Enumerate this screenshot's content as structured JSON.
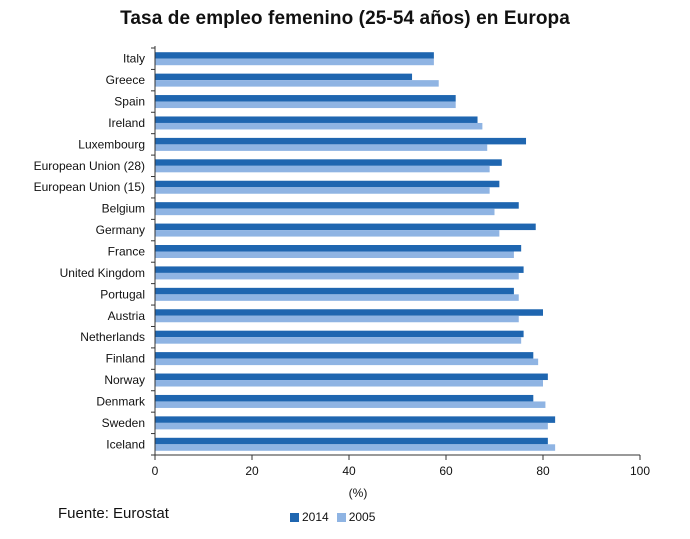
{
  "title": "Tasa de empleo femenino (25-54 años) en Europa",
  "source": "Fuente: Eurostat",
  "colors": {
    "series_2014": "#1f66b0",
    "series_2005": "#8fb4e3",
    "axis": "#333333",
    "gridline": "#ffffff"
  },
  "chart_data": {
    "type": "bar",
    "orientation": "horizontal",
    "title": "Tasa de empleo femenino (25-54 años) en Europa",
    "xlabel": "(%)",
    "ylabel": "",
    "xlim": [
      0,
      100
    ],
    "xticks": [
      0,
      20,
      40,
      60,
      80,
      100
    ],
    "grid": false,
    "legend_position": "bottom",
    "categories": [
      "Italy",
      "Greece",
      "Spain",
      "Ireland",
      "Luxembourg",
      "European Union (28)",
      "European Union (15)",
      "Belgium",
      "Germany",
      "France",
      "United Kingdom",
      "Portugal",
      "Austria",
      "Netherlands",
      "Finland",
      "Norway",
      "Denmark",
      "Sweden",
      "Iceland"
    ],
    "series": [
      {
        "name": "2014",
        "color": "#1f66b0",
        "values": [
          57.5,
          53.0,
          62.0,
          66.5,
          76.5,
          71.5,
          71.0,
          75.0,
          78.5,
          75.5,
          76.0,
          74.0,
          80.0,
          76.0,
          78.0,
          81.0,
          78.0,
          82.5,
          81.0
        ]
      },
      {
        "name": "2005",
        "color": "#8fb4e3",
        "values": [
          57.5,
          58.5,
          62.0,
          67.5,
          68.5,
          69.0,
          69.0,
          70.0,
          71.0,
          74.0,
          75.0,
          75.0,
          75.0,
          75.5,
          79.0,
          80.0,
          80.5,
          81.0,
          82.5
        ]
      }
    ]
  }
}
